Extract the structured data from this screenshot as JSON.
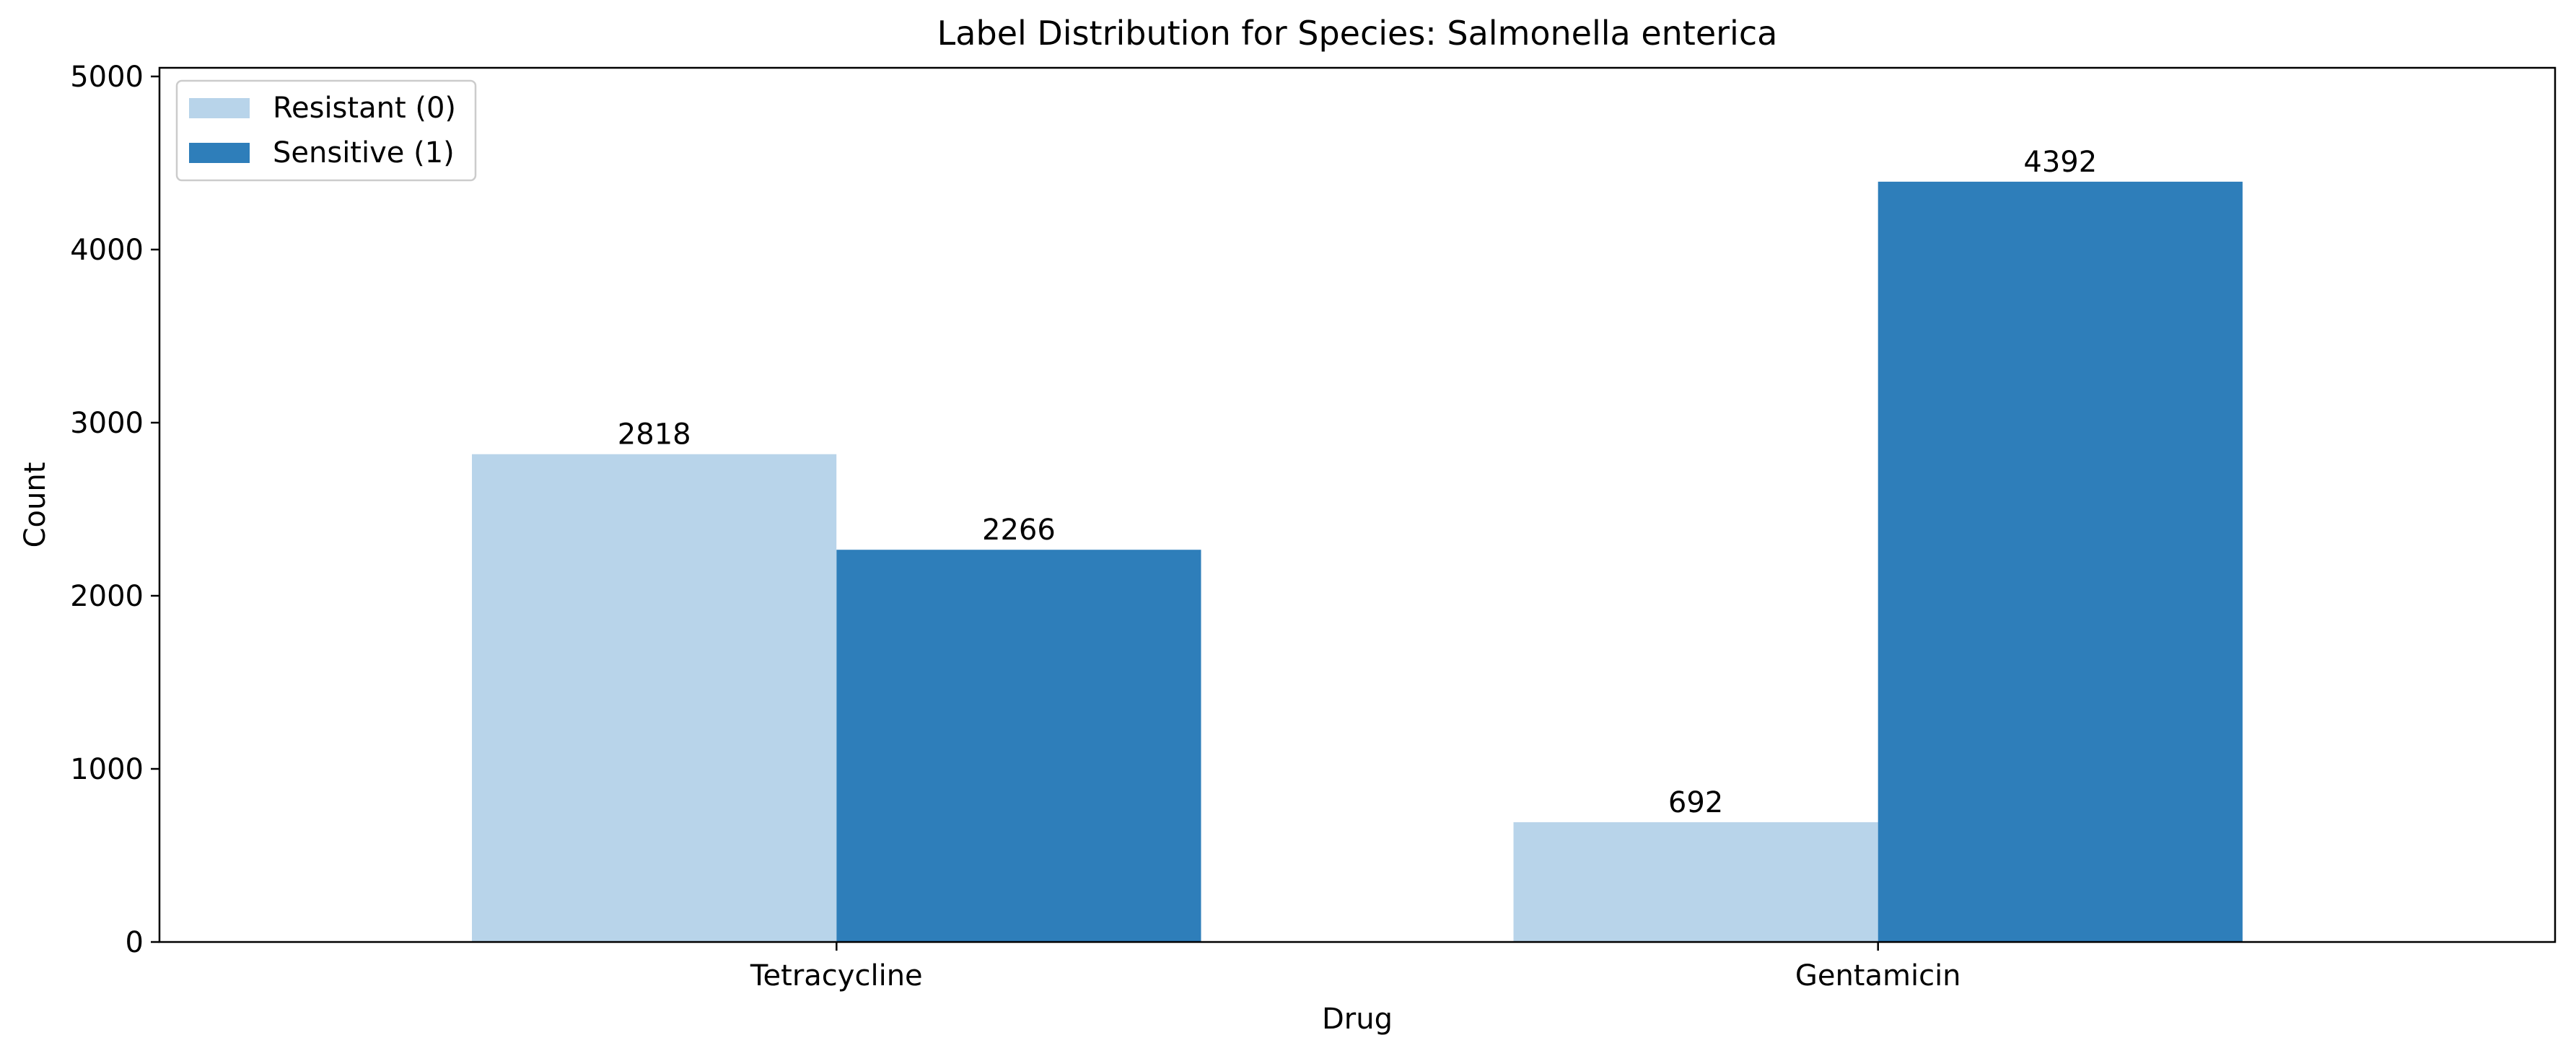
{
  "chart_data": {
    "type": "bar",
    "title": "Label Distribution for Species: Salmonella enterica",
    "xlabel": "Drug",
    "ylabel": "Count",
    "categories": [
      "Tetracycline",
      "Gentamicin"
    ],
    "series": [
      {
        "name": "Resistant (0)",
        "values": [
          2818,
          692
        ],
        "color": "#b8d4ea"
      },
      {
        "name": "Sensitive (1)",
        "values": [
          2266,
          4392
        ],
        "color": "#2e7eba"
      }
    ],
    "ylim": [
      0,
      5050
    ],
    "yticks": [
      "0",
      "1000",
      "2000",
      "3000",
      "4000",
      "5000"
    ],
    "grid": false,
    "legend_position": "top-left"
  }
}
